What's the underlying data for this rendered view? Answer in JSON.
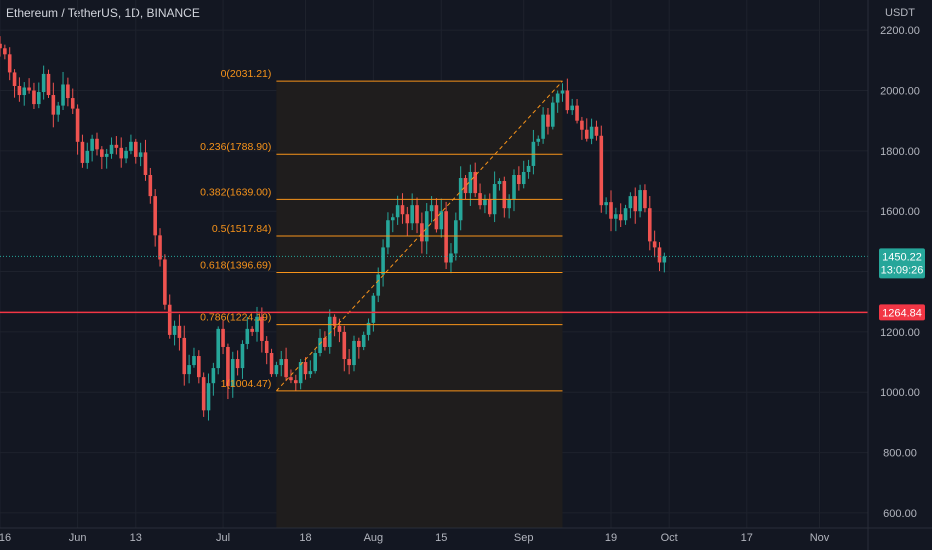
{
  "header": {
    "title": "Ethereum / TetherUS, 1D, BINANCE"
  },
  "colors": {
    "background": "#131722",
    "up": "#26a69a",
    "down": "#ef5350",
    "fib": "#f7931a",
    "hline": "#f23645",
    "text": "#b2b5be"
  },
  "chart_data": {
    "type": "candlestick",
    "y_axis": {
      "unit_label": "USDT",
      "ylim": [
        550,
        2300
      ],
      "ticks": [
        600,
        800,
        1000,
        1200,
        1400,
        1600,
        1800,
        2000,
        2200
      ],
      "tick_labels": [
        "600.00",
        "800.00",
        "1000.00",
        "1200.00",
        "1400.00",
        "1600.00",
        "1800.00",
        "2000.00",
        "2200.00"
      ]
    },
    "x_axis": {
      "start_day": 136,
      "end_day": 315,
      "ticks": [
        {
          "day": 136,
          "label": "16"
        },
        {
          "day": 152,
          "label": "Jun"
        },
        {
          "day": 164,
          "label": "13"
        },
        {
          "day": 182,
          "label": "Jul"
        },
        {
          "day": 199,
          "label": "18"
        },
        {
          "day": 213,
          "label": "Aug"
        },
        {
          "day": 227,
          "label": "15"
        },
        {
          "day": 244,
          "label": "Sep"
        },
        {
          "day": 262,
          "label": "19"
        },
        {
          "day": 274,
          "label": "Oct"
        },
        {
          "day": 290,
          "label": "17"
        },
        {
          "day": 305,
          "label": "Nov"
        }
      ]
    },
    "current_price": {
      "label": "1450.22",
      "countdown": "13:09:26",
      "value": 1450.22
    },
    "horizontal_line": {
      "label": "1264.84",
      "value": 1264.84
    },
    "fibonacci": {
      "start_day": 193,
      "end_day": 252,
      "levels": [
        {
          "label": "0(2031.21)",
          "value": 2031.21
        },
        {
          "label": "0.236(1788.90)",
          "value": 1788.9
        },
        {
          "label": "0.382(1639.00)",
          "value": 1639.0
        },
        {
          "label": "0.5(1517.84)",
          "value": 1517.84
        },
        {
          "label": "0.618(1396.69)",
          "value": 1396.69
        },
        {
          "label": "0.786(1224.19)",
          "value": 1224.19
        },
        {
          "label": "1(1004.47)",
          "value": 1004.47
        }
      ]
    },
    "trend_line": {
      "from": {
        "day": 193,
        "value": 1004.47
      },
      "to": {
        "day": 252,
        "value": 2031.21
      }
    },
    "closes": [
      2140,
      2120,
      2060,
      2015,
      1985,
      2010,
      2000,
      1955,
      1995,
      2055,
      1985,
      1920,
      1950,
      2020,
      1975,
      1940,
      1830,
      1760,
      1800,
      1840,
      1805,
      1780,
      1790,
      1820,
      1810,
      1775,
      1800,
      1830,
      1780,
      1795,
      1720,
      1650,
      1520,
      1440,
      1290,
      1190,
      1220,
      1180,
      1060,
      1090,
      1120,
      1050,
      940,
      1030,
      1080,
      1210,
      1150,
      1020,
      1110,
      1080,
      1160,
      1210,
      1200,
      1250,
      1170,
      1130,
      1060,
      1090,
      1110,
      1050,
      1040,
      1030,
      1100,
      1060,
      1070,
      1130,
      1180,
      1150,
      1250,
      1220,
      1200,
      1110,
      1090,
      1170,
      1150,
      1190,
      1230,
      1320,
      1390,
      1480,
      1570,
      1580,
      1620,
      1590,
      1560,
      1620,
      1560,
      1500,
      1600,
      1620,
      1540,
      1600,
      1430,
      1460,
      1570,
      1710,
      1660,
      1730,
      1660,
      1620,
      1640,
      1590,
      1690,
      1700,
      1610,
      1640,
      1720,
      1690,
      1730,
      1750,
      1830,
      1840,
      1920,
      1880,
      1960,
      1990,
      2000,
      1935,
      1950,
      1900,
      1870,
      1840,
      1880,
      1850,
      1620,
      1630,
      1575,
      1590,
      1570,
      1610,
      1650,
      1600,
      1670,
      1610,
      1500,
      1480,
      1430,
      1450
    ]
  }
}
